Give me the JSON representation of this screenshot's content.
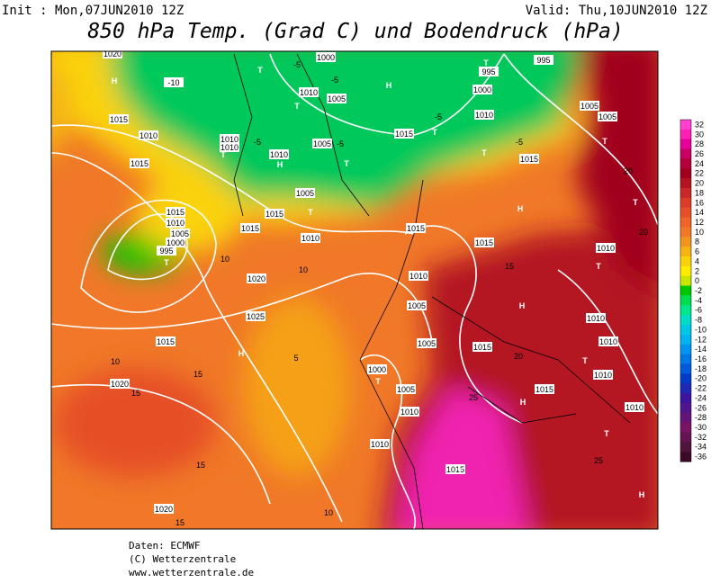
{
  "header": {
    "init": "Init : Mon,07JUN2010 12Z",
    "valid": "Valid: Thu,10JUN2010 12Z",
    "title": "850 hPa Temp. (Grad C) und Bodendruck (hPa)"
  },
  "legend": {
    "levels": [
      32,
      30,
      28,
      26,
      24,
      22,
      20,
      18,
      16,
      14,
      12,
      10,
      8,
      6,
      4,
      2,
      0,
      -2,
      -4,
      -6,
      -8,
      -10,
      -12,
      -14,
      -16,
      -18,
      -20,
      -22,
      -24,
      -26,
      -28,
      -30,
      -32,
      -34,
      -36
    ],
    "colors": [
      "#ff40d0",
      "#ff20b4",
      "#e6009a",
      "#c80064",
      "#b4003c",
      "#a0001e",
      "#b41420",
      "#c82828",
      "#dc3c28",
      "#e65028",
      "#f06428",
      "#f07828",
      "#f0961e",
      "#f5b414",
      "#fad20a",
      "#ffeb00",
      "#c8e600",
      "#00c800",
      "#00dc50",
      "#00e68c",
      "#00dcc8",
      "#00c8e6",
      "#00b4f0",
      "#0096f0",
      "#0078e6",
      "#005adc",
      "#003cc8",
      "#1e28b4",
      "#3c14a0",
      "#50148c",
      "#641478",
      "#781464",
      "#641450",
      "#50143c",
      "#3c0a28"
    ]
  },
  "map_labels": [
    "1020",
    "H",
    "-10",
    "T",
    "-5",
    "1000",
    "-5",
    "1010",
    "1005",
    "T",
    "H",
    "T",
    "995",
    "995",
    "1000",
    "1010",
    "-5",
    "T",
    "1015",
    "1010",
    "1010",
    "1010",
    "-5",
    "T",
    "1010",
    "H",
    "1005",
    "-5",
    "T",
    "1015",
    "T",
    "1015",
    "-5",
    "1005",
    "1005",
    "T",
    "20",
    "T",
    "1015",
    "1005",
    "T",
    "1015",
    "1015",
    "1010",
    "1015",
    "1010",
    "1005",
    "1000",
    "995",
    "T",
    "H",
    "1015",
    "1015",
    "1010",
    "T",
    "20",
    "1010",
    "15",
    "1020",
    "10",
    "10",
    "1025",
    "H",
    "1005",
    "H",
    "1010",
    "1010",
    "1015",
    "10",
    "5",
    "1000",
    "T",
    "1005",
    "1015",
    "20",
    "T",
    "1010",
    "15",
    "1020",
    "15",
    "1005",
    "1015",
    "H",
    "25",
    "1010",
    "1010",
    "T",
    "1010",
    "25",
    "15",
    "1015",
    "T",
    "1020",
    "15",
    "10",
    "H"
  ],
  "footer": [
    "Daten: ECMWF",
    "(C) Wetterzentrale",
    "www.wetterzentrale.de"
  ]
}
